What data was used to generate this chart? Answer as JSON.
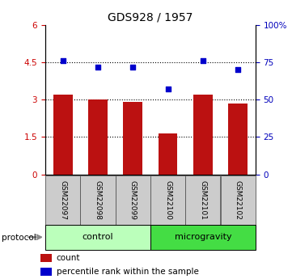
{
  "title": "GDS928 / 1957",
  "samples": [
    "GSM22097",
    "GSM22098",
    "GSM22099",
    "GSM22100",
    "GSM22101",
    "GSM22102"
  ],
  "bar_values": [
    3.2,
    3.0,
    2.9,
    1.65,
    3.22,
    2.85
  ],
  "percentile_values": [
    76,
    72,
    72,
    57,
    76,
    70
  ],
  "bar_color": "#bb1111",
  "dot_color": "#0000cc",
  "left_ylim": [
    0,
    6
  ],
  "right_ylim": [
    0,
    100
  ],
  "left_yticks": [
    0,
    1.5,
    3.0,
    4.5,
    6.0
  ],
  "left_yticklabels": [
    "0",
    "1.5",
    "3",
    "4.5",
    "6"
  ],
  "right_yticks": [
    0,
    25,
    50,
    75,
    100
  ],
  "right_yticklabels": [
    "0",
    "25",
    "50",
    "75",
    "100%"
  ],
  "gridlines_at": [
    1.5,
    3.0,
    4.5
  ],
  "groups": [
    {
      "label": "control",
      "color": "#bbffbb"
    },
    {
      "label": "microgravity",
      "color": "#44dd44"
    }
  ],
  "protocol_label": "protocol",
  "legend_items": [
    {
      "color": "#bb1111",
      "label": "count"
    },
    {
      "color": "#0000cc",
      "label": "percentile rank within the sample"
    }
  ],
  "tick_label_color_left": "#cc0000",
  "tick_label_color_right": "#0000bb",
  "bar_width": 0.55,
  "label_box_bg": "#cccccc",
  "label_box_border": "#555555"
}
